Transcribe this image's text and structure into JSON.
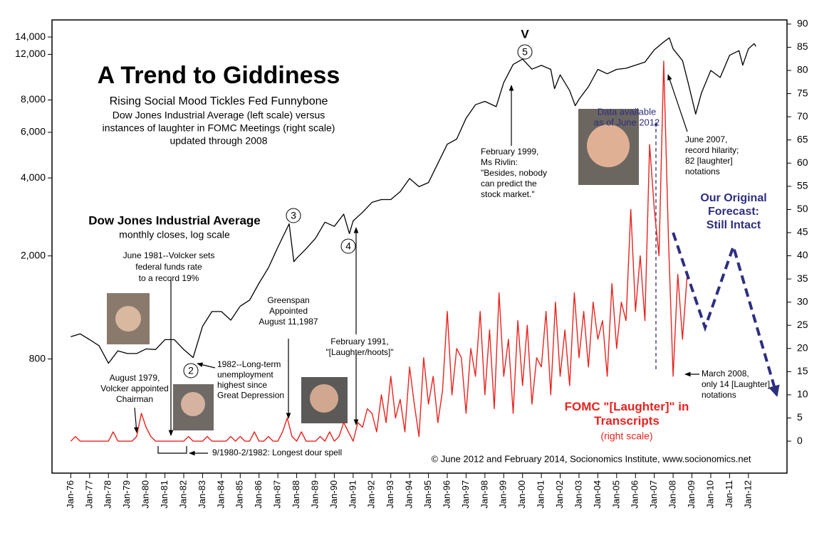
{
  "chart_data": {
    "type": "line",
    "title": "A Trend to Giddiness",
    "subtitle": "Rising Social Mood Tickles Fed Funnybone",
    "description": [
      "Dow Jones Industrial Average (left scale) versus",
      "instances of laughter in FOMC Meetings (right scale)",
      "updated through 2008"
    ],
    "log_y": true,
    "xlim": [
      1975,
      2014.05
    ],
    "ylim": [
      290,
      16300
    ],
    "y2lim": [
      -6.9,
      90.9
    ],
    "xticks": [
      {
        "value": 1976,
        "label": "Jan-76"
      },
      {
        "value": 1977,
        "label": "Jan-77"
      },
      {
        "value": 1978,
        "label": "Jan-78"
      },
      {
        "value": 1979,
        "label": "Jan-79"
      },
      {
        "value": 1980,
        "label": "Jan-80"
      },
      {
        "value": 1981,
        "label": "Jan-81"
      },
      {
        "value": 1982,
        "label": "Jan-82"
      },
      {
        "value": 1983,
        "label": "Jan-83"
      },
      {
        "value": 1984,
        "label": "Jan-84"
      },
      {
        "value": 1985,
        "label": "Jan-85"
      },
      {
        "value": 1986,
        "label": "Jan-86"
      },
      {
        "value": 1987,
        "label": "Jan-87"
      },
      {
        "value": 1988,
        "label": "Jan-88"
      },
      {
        "value": 1989,
        "label": "Jan-89"
      },
      {
        "value": 1990,
        "label": "Jan-90"
      },
      {
        "value": 1991,
        "label": "Jan-91"
      },
      {
        "value": 1992,
        "label": "Jan-92"
      },
      {
        "value": 1993,
        "label": "Jan-93"
      },
      {
        "value": 1994,
        "label": "Jan-94"
      },
      {
        "value": 1995,
        "label": "Jan-95"
      },
      {
        "value": 1996,
        "label": "Jan-96"
      },
      {
        "value": 1997,
        "label": "Jan-97"
      },
      {
        "value": 1998,
        "label": "Jan-98"
      },
      {
        "value": 1999,
        "label": "Jan-99"
      },
      {
        "value": 2000,
        "label": "Jan-00"
      },
      {
        "value": 2001,
        "label": "Jan-01"
      },
      {
        "value": 2002,
        "label": "Jan-02"
      },
      {
        "value": 2003,
        "label": "Jan-03"
      },
      {
        "value": 2004,
        "label": "Jan-04"
      },
      {
        "value": 2005,
        "label": "Jan-05"
      },
      {
        "value": 2006,
        "label": "Jan-06"
      },
      {
        "value": 2007,
        "label": "Jan-07"
      },
      {
        "value": 2008,
        "label": "Jan-08"
      },
      {
        "value": 2009,
        "label": "Jan-09"
      },
      {
        "value": 2010,
        "label": "Jan-10"
      },
      {
        "value": 2011,
        "label": "Jan-11"
      },
      {
        "value": 2012,
        "label": "Jan-12"
      }
    ],
    "yticks": [
      800,
      {
        "value": 2000,
        "label": "2,000"
      },
      {
        "value": 4000,
        "label": "4,000"
      },
      {
        "value": 6000,
        "label": "6,000"
      },
      {
        "value": 8000,
        "label": "8,000"
      },
      {
        "value": 12000,
        "label": "12,000"
      },
      {
        "value": 14000,
        "label": "14,000"
      }
    ],
    "y2ticks": [
      0,
      5,
      10,
      15,
      20,
      25,
      30,
      35,
      40,
      45,
      50,
      55,
      60,
      65,
      70,
      75,
      80,
      85,
      90
    ],
    "series": [
      {
        "name": "Dow Jones Industrial Average",
        "description": "monthly closes, log scale",
        "color": "#000000",
        "axis": "y",
        "x": [
          1976,
          1976.5,
          1977,
          1977.5,
          1978,
          1978.5,
          1979,
          1979.5,
          1980,
          1980.5,
          1981,
          1981.5,
          1982,
          1982.5,
          1983,
          1983.5,
          1984,
          1984.5,
          1985,
          1985.5,
          1986,
          1986.5,
          1987,
          1987.6,
          1987.85,
          1988,
          1988.5,
          1989,
          1989.5,
          1990,
          1990.5,
          1990.8,
          1991,
          1991.5,
          1992,
          1992.5,
          1993,
          1993.5,
          1994,
          1994.5,
          1995,
          1995.5,
          1996,
          1996.5,
          1997,
          1997.5,
          1998,
          1998.6,
          1999,
          1999.5,
          2000,
          2000.5,
          2001,
          2001.5,
          2001.7,
          2002,
          2002.5,
          2002.8,
          2003,
          2003.5,
          2004,
          2004.5,
          2005,
          2005.5,
          2006,
          2006.5,
          2007,
          2007.5,
          2007.8,
          2008,
          2008.5,
          2008.8,
          2009.2,
          2009.5,
          2010,
          2010.5,
          2011,
          2011.5,
          2011.7,
          2012,
          2012.3,
          2012.4
        ],
        "values": [
          975,
          1000,
          950,
          900,
          770,
          860,
          840,
          840,
          875,
          870,
          950,
          950,
          870,
          810,
          1070,
          1220,
          1220,
          1130,
          1280,
          1350,
          1570,
          1800,
          2160,
          2660,
          1900,
          1960,
          2130,
          2340,
          2700,
          2600,
          2900,
          2440,
          2730,
          2950,
          3220,
          3300,
          3300,
          3540,
          3980,
          3700,
          3840,
          4550,
          5400,
          5650,
          6800,
          7670,
          7900,
          7540,
          9350,
          10970,
          11500,
          10520,
          10880,
          10500,
          8850,
          10000,
          8700,
          7600,
          8050,
          9000,
          10500,
          10100,
          10500,
          10600,
          10900,
          11200,
          12500,
          13400,
          13900,
          12600,
          11350,
          9300,
          7060,
          8500,
          10400,
          9770,
          11900,
          12400,
          10900,
          12600,
          13200,
          12880
        ]
      },
      {
        "name": "FOMC \"[Laughter]\" in Transcripts",
        "description": "(right scale)",
        "color": "#e8231e",
        "axis": "y2",
        "x": [
          1976,
          1976.25,
          1976.5,
          1976.75,
          1977,
          1977.25,
          1977.5,
          1977.75,
          1978,
          1978.25,
          1978.5,
          1978.75,
          1979,
          1979.25,
          1979.5,
          1979.75,
          1980,
          1980.25,
          1980.5,
          1980.75,
          1981,
          1981.25,
          1981.5,
          1981.75,
          1982,
          1982.25,
          1982.5,
          1982.75,
          1983,
          1983.25,
          1983.5,
          1983.75,
          1984,
          1984.25,
          1984.5,
          1984.75,
          1985,
          1985.25,
          1985.5,
          1985.75,
          1986,
          1986.25,
          1986.5,
          1986.75,
          1987,
          1987.25,
          1987.5,
          1987.75,
          1988,
          1988.25,
          1988.5,
          1988.75,
          1989,
          1989.25,
          1989.5,
          1989.75,
          1990,
          1990.25,
          1990.5,
          1990.75,
          1991,
          1991.25,
          1991.5,
          1991.75,
          1992,
          1992.25,
          1992.5,
          1992.75,
          1993,
          1993.25,
          1993.5,
          1993.75,
          1994,
          1994.25,
          1994.5,
          1994.75,
          1995,
          1995.25,
          1995.5,
          1995.75,
          1996,
          1996.25,
          1996.5,
          1996.75,
          1997,
          1997.25,
          1997.5,
          1997.75,
          1998,
          1998.25,
          1998.5,
          1998.75,
          1999,
          1999.25,
          1999.5,
          1999.75,
          2000,
          2000.25,
          2000.5,
          2000.75,
          2001,
          2001.25,
          2001.5,
          2001.75,
          2002,
          2002.25,
          2002.5,
          2002.75,
          2003,
          2003.25,
          2003.5,
          2003.75,
          2004,
          2004.25,
          2004.5,
          2004.75,
          2005,
          2005.25,
          2005.5,
          2005.75,
          2006,
          2006.25,
          2006.5,
          2006.75,
          2007,
          2007.25,
          2007.5,
          2007.75,
          2008,
          2008.25,
          2008.5,
          2008.75
        ],
        "values": [
          0,
          1,
          0,
          0,
          0,
          0,
          0,
          0,
          0,
          2,
          0,
          0,
          0,
          0,
          1,
          6,
          3,
          1,
          0,
          0,
          0,
          0,
          0,
          0,
          0,
          1,
          0,
          0,
          0,
          1,
          0,
          0,
          0,
          0,
          1,
          0,
          1,
          0,
          0,
          2,
          0,
          0,
          1,
          0,
          0,
          2,
          5,
          1,
          0,
          2,
          0,
          0,
          0,
          1,
          0,
          2,
          0,
          1,
          4,
          2,
          0,
          4,
          3,
          7,
          6,
          2,
          10,
          4,
          14,
          5,
          9,
          2,
          16,
          8,
          1,
          18,
          8,
          14,
          4,
          11,
          28,
          10,
          20,
          18,
          6,
          20,
          14,
          28,
          10,
          24,
          7,
          32,
          14,
          22,
          6,
          26,
          12,
          25,
          8,
          18,
          16,
          28,
          10,
          30,
          14,
          24,
          12,
          32,
          18,
          28,
          16,
          30,
          22,
          26,
          14,
          34,
          20,
          30,
          26,
          50,
          28,
          40,
          26,
          64,
          50,
          40,
          82,
          44,
          14,
          36,
          22,
          36
        ]
      }
    ],
    "forecast": {
      "x": [
        2008.0,
        2009.7,
        2011.2,
        2013.5
      ],
      "values": [
        45,
        24.5,
        42,
        10
      ],
      "color": "#2e2e80"
    },
    "waves": [
      "2",
      "3",
      "4",
      "5",
      "V"
    ],
    "annotations": {
      "volcker_1981": [
        "June 1981--Volcker sets",
        "federal funds rate",
        "to a record 19%"
      ],
      "volcker_1979": [
        "August 1979,",
        "Volcker appointed",
        "Chairman"
      ],
      "unemployment": [
        "1982--Long-term",
        "unemployment",
        "highest since",
        "Great Depression"
      ],
      "greenspan": [
        "Greenspan",
        "Appointed",
        "August 11,1987"
      ],
      "feb_1991": [
        "February 1991,",
        "\"[Laughter/hoots]\""
      ],
      "rivlin": [
        "February 1999,",
        "Ms Rivlin:",
        "\"Besides, nobody",
        "can predict the",
        "stock market.\""
      ],
      "data_available": [
        "Data available",
        "as of June 2012"
      ],
      "june_2007": [
        "June 2007,",
        "record hilarity;",
        "82 [laughter]",
        "notations"
      ],
      "forecast_label": [
        "Our Original",
        "Forecast:",
        "Still Intact"
      ],
      "march_2008": [
        "March 2008,",
        "only 14 [Laughter]",
        "notations"
      ],
      "dour_spell": [
        "9/1980-2/1982: Longest dour spell"
      ]
    },
    "copyright": "© June 2012 and February 2014, Socionomics Institute, www.socionomics.net"
  }
}
